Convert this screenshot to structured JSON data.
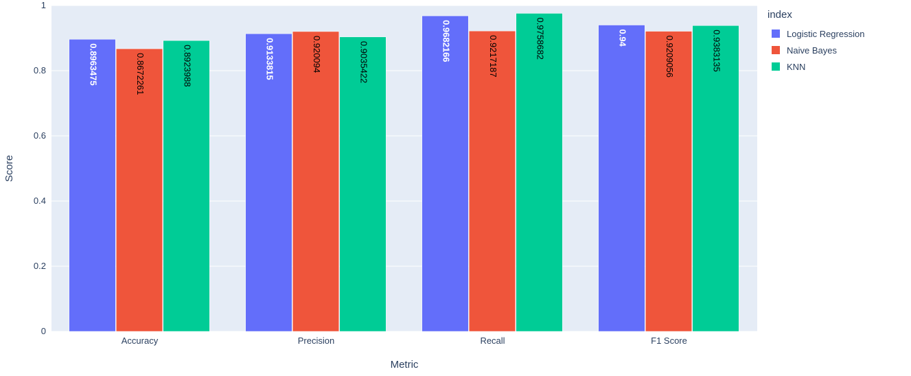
{
  "chart_data": {
    "type": "bar",
    "categories": [
      "Accuracy",
      "Precision",
      "Recall",
      "F1 Score"
    ],
    "series": [
      {
        "name": "Logistic Regression",
        "color": "#636efa",
        "label_color": "#ffffff",
        "values": [
          0.8963475,
          0.9133815,
          0.9682166,
          0.94
        ],
        "labels": [
          "0.8963475",
          "0.9133815",
          "0.9682166",
          "0.94"
        ]
      },
      {
        "name": "Naive Bayes",
        "color": "#ef553b",
        "label_color": "#000000",
        "values": [
          0.8672261,
          0.920094,
          0.9217187,
          0.9209056
        ],
        "labels": [
          "0.8672261",
          "0.920094",
          "0.9217187",
          "0.9209056"
        ]
      },
      {
        "name": "KNN",
        "color": "#00cc96",
        "label_color": "#000000",
        "values": [
          0.8923988,
          0.9035422,
          0.9758682,
          0.9383135
        ],
        "labels": [
          "0.8923988",
          "0.9035422",
          "0.9758682",
          "0.9383135"
        ]
      }
    ],
    "xlabel": "Metric",
    "ylabel": "Score",
    "ylim": [
      0,
      1
    ],
    "yticks": [
      0,
      0.2,
      0.4,
      0.6,
      0.8,
      1
    ],
    "ytick_labels": [
      "0",
      "0.2",
      "0.4",
      "0.6",
      "0.8",
      "1"
    ],
    "legend_title": "index",
    "legend_position": "top-right",
    "grid": true,
    "plot_background": "#e5ecf6"
  }
}
